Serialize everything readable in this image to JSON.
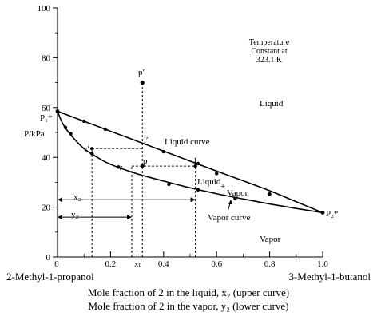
{
  "chart_data": {
    "type": "line",
    "xlabel_left": "2-Methyl-1-propanol",
    "xlabel_right": "3-Methyl-1-butanol",
    "xlabel_line1": "Mole fraction of 2 in the liquid, x₂ (upper curve)",
    "xlabel_line2": "Mole fraction of 2 in the vapor, y₂ (lower curve)",
    "ylabel": "P/kPa",
    "xlim": [
      0,
      1.0
    ],
    "ylim": [
      0,
      100
    ],
    "x_ticks": [
      "0",
      "0.2",
      "0.4",
      "0.6",
      "0.8",
      "1.0"
    ],
    "x_tick_values": [
      0,
      0.2,
      0.4,
      0.6,
      0.8,
      1.0
    ],
    "y_ticks": [
      "0",
      "20",
      "40",
      "60",
      "80",
      "100"
    ],
    "y_tick_values": [
      0,
      20,
      40,
      60,
      80,
      100
    ],
    "annotation": [
      "Temperature",
      "Constant at",
      "323.1 K"
    ],
    "series": [
      {
        "name": "Liquid curve",
        "points": [
          [
            0,
            58.5
          ],
          [
            0.05,
            56.5
          ],
          [
            0.1,
            54.5
          ],
          [
            0.2,
            50.5
          ],
          [
            0.3,
            46.5
          ],
          [
            0.4,
            42.5
          ],
          [
            0.5,
            38.5
          ],
          [
            0.6,
            34.5
          ],
          [
            0.7,
            30.6
          ],
          [
            0.8,
            26.6
          ],
          [
            0.9,
            22.2
          ],
          [
            1.0,
            17.8
          ]
        ],
        "markers": [
          [
            0.1,
            54.5
          ],
          [
            0.18,
            51.3
          ],
          [
            0.4,
            42.3
          ],
          [
            0.53,
            37.5
          ],
          [
            0.6,
            33.5
          ],
          [
            0.8,
            25.3
          ]
        ]
      },
      {
        "name": "Vapor curve",
        "points": [
          [
            0,
            58.5
          ],
          [
            0.02,
            53.5
          ],
          [
            0.05,
            49
          ],
          [
            0.1,
            43.5
          ],
          [
            0.15,
            40
          ],
          [
            0.2,
            37.2
          ],
          [
            0.3,
            33.4
          ],
          [
            0.4,
            30.5
          ],
          [
            0.5,
            27.8
          ],
          [
            0.6,
            25.4
          ],
          [
            0.7,
            23.3
          ],
          [
            0.8,
            21.3
          ],
          [
            0.9,
            19.5
          ],
          [
            1.0,
            17.8
          ]
        ],
        "markers": [
          [
            0.03,
            52
          ],
          [
            0.05,
            49.5
          ],
          [
            0.13,
            41.5
          ],
          [
            0.23,
            36.1
          ],
          [
            0.42,
            29.2
          ],
          [
            0.53,
            27
          ],
          [
            0.67,
            23.5
          ]
        ]
      }
    ],
    "point_labels": [
      {
        "text": "p′",
        "x": 0.32,
        "y": 72
      },
      {
        "text": "l′",
        "x": 0.32,
        "y": 47
      },
      {
        "text": "v′",
        "x": 0.1,
        "y": 42
      },
      {
        "text": "p",
        "x": 0.32,
        "y": 38
      },
      {
        "text": "v",
        "x": 0.23,
        "y": 35
      },
      {
        "text": "l",
        "x": 0.52,
        "y": 38
      }
    ],
    "guide_lines": {
      "x_T": 0.32,
      "p_prime_y": 70,
      "tie_lines": [
        {
          "y": 43.5,
          "x_from": 0.13,
          "x_to": 0.32
        },
        {
          "y": 36.5,
          "x_from": 0.28,
          "x_to": 0.52
        }
      ],
      "verticals": [
        {
          "x": 0.13,
          "y_top": 43.5
        },
        {
          "x": 0.28,
          "y_top": 36.5
        },
        {
          "x": 0.32,
          "y_top": 70
        },
        {
          "x": 0.52,
          "y_top": 36.5
        }
      ],
      "x2_arrow": {
        "y": 23,
        "x_to": 0.52
      },
      "y2_arrow": {
        "y": 16,
        "x_to": 0.28
      }
    },
    "labels": {
      "p1": "P₁*",
      "p2": "P₂*",
      "liquid_region": "Liquid",
      "vapor_region": "Vapor",
      "liquid_curve": "Liquid curve",
      "vapor_curve": "Vapor curve",
      "liquid_plus_vapor_a": "Liquid",
      "liquid_plus_vapor_plus": "+",
      "liquid_plus_vapor_b": "Vapor",
      "x2": "x₂",
      "y2": "y₂",
      "xT": "xₜ"
    }
  }
}
